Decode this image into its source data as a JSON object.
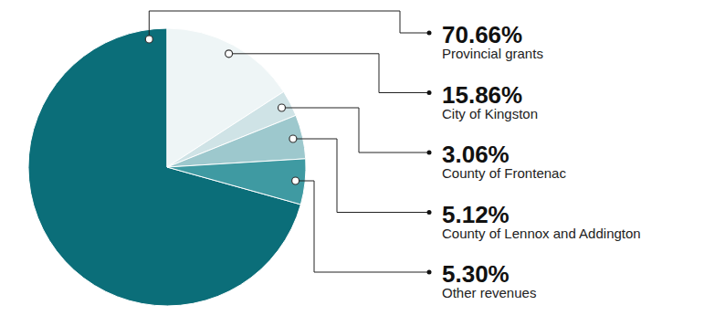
{
  "chart_data": {
    "type": "pie",
    "categories": [
      "Provincial grants",
      "City of Kingston",
      "County of Frontenac",
      "County of Lennox and Addington",
      "Other revenues"
    ],
    "values": [
      70.66,
      15.86,
      3.06,
      5.12,
      5.3
    ],
    "value_labels": [
      "70.66%",
      "15.86%",
      "3.06%",
      "5.12%",
      "5.30%"
    ],
    "colors": [
      "#0b6e79",
      "#eef5f6",
      "#cfe3e6",
      "#9dc8cd",
      "#3f9aa2"
    ],
    "data_labels": true
  }
}
